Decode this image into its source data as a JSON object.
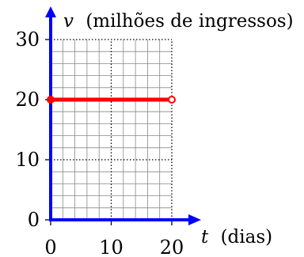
{
  "chart_data": {
    "type": "line",
    "xlabel": {
      "variable": "t",
      "text": "(dias)"
    },
    "ylabel": {
      "variable": "v",
      "text": "(milhões de ingressos)"
    },
    "xlim": [
      0,
      20
    ],
    "ylim": [
      0,
      30
    ],
    "x_ticks": [
      {
        "value": 0,
        "label": "0"
      },
      {
        "value": 10,
        "label": "10"
      },
      {
        "value": 20,
        "label": "20"
      }
    ],
    "y_ticks": [
      {
        "value": 0,
        "label": "0"
      },
      {
        "value": 10,
        "label": "10"
      },
      {
        "value": 20,
        "label": "20"
      },
      {
        "value": 30,
        "label": "30"
      }
    ],
    "grid": {
      "minor_step_x": 2,
      "minor_step_y": 2,
      "major_step_x": 10,
      "major_step_y": 10
    },
    "series": [
      {
        "points": [
          {
            "x": 0,
            "y": 20,
            "marker": "closed"
          },
          {
            "x": 20,
            "y": 20,
            "marker": "open"
          }
        ]
      }
    ],
    "colors": {
      "axis": "#0000ff",
      "series": "#ff0000",
      "grid": "#888888",
      "major_grid": "#000000"
    }
  }
}
